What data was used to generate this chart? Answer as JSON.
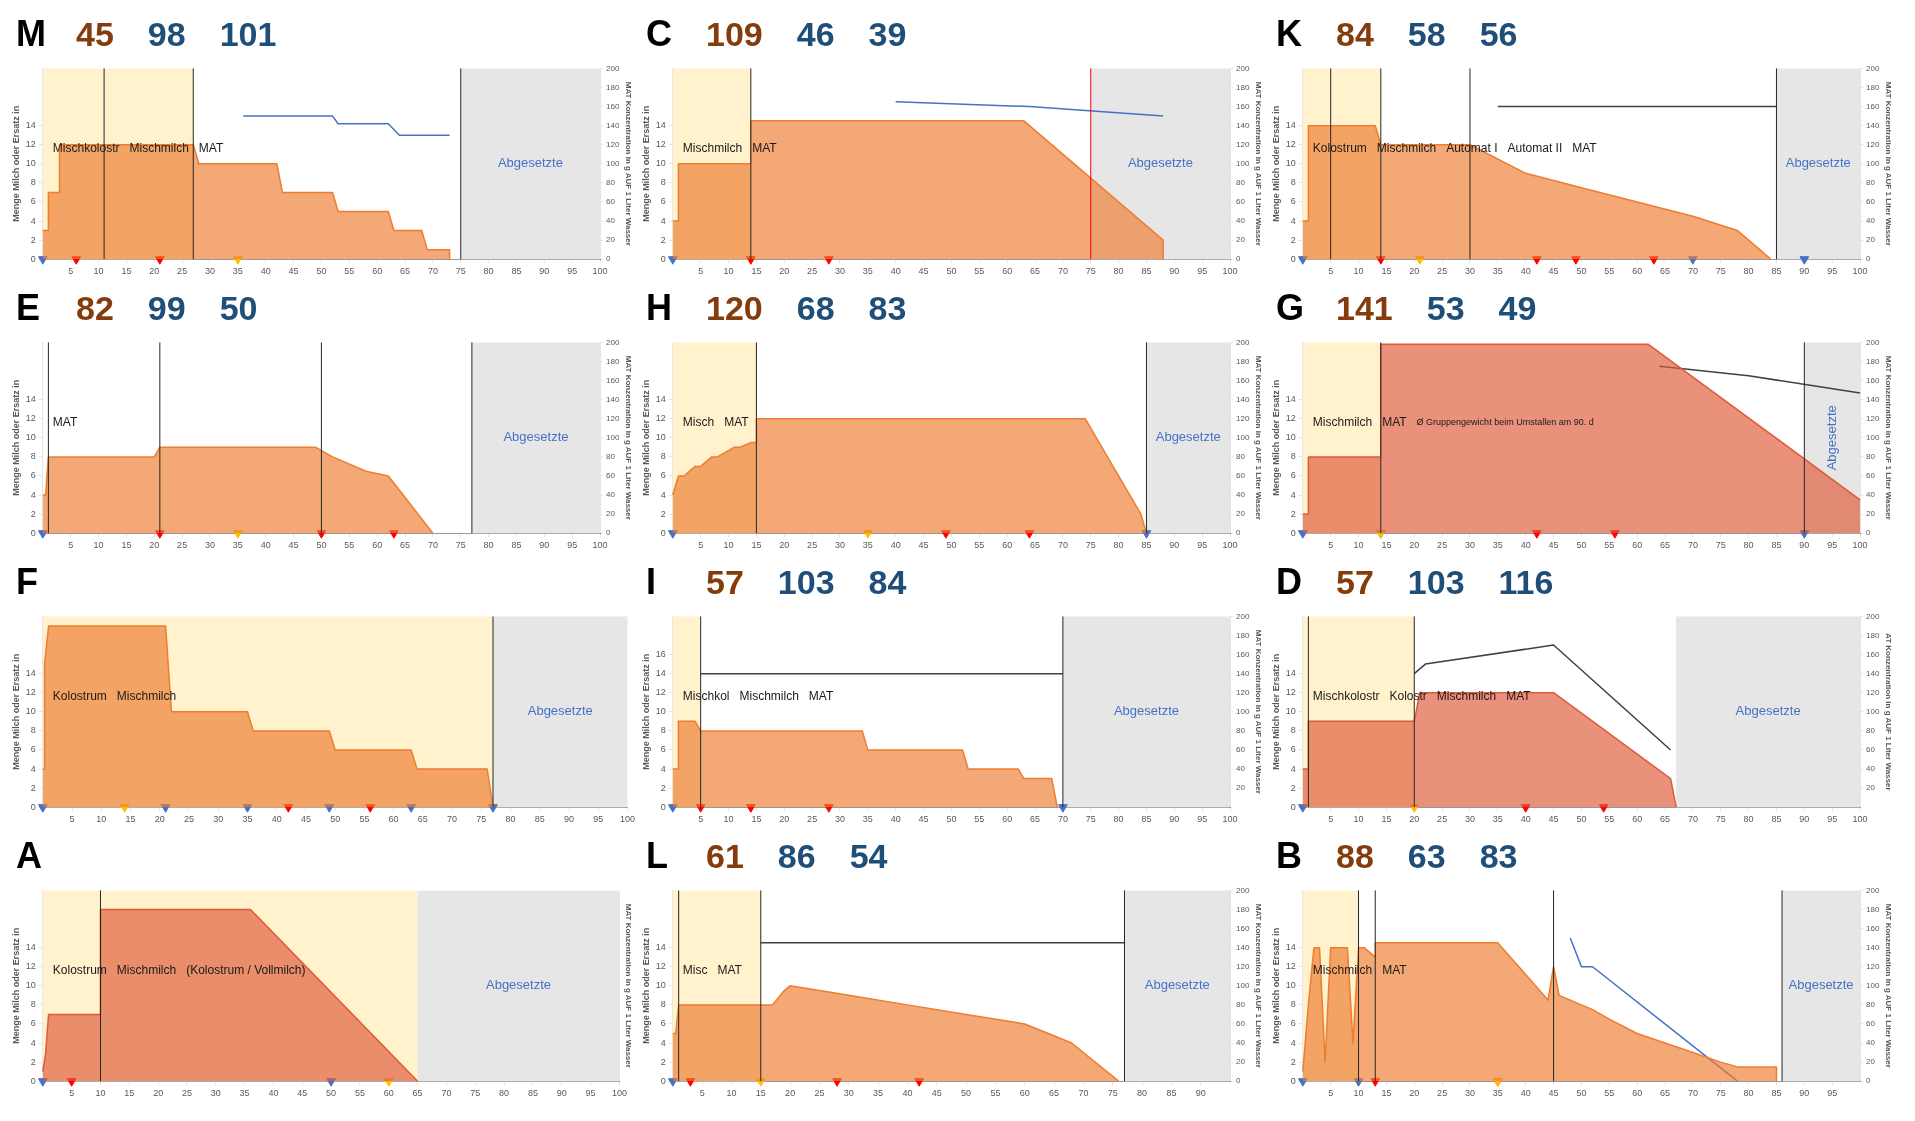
{
  "chart_data": [
    {
      "type": "area",
      "title": "M",
      "ylabel": "Menge Milch oder Ersatz in",
      "y2label": "MAT Konzentration in g AUF 1 Liter Wasser",
      "xlim": [
        0,
        100
      ],
      "xticks": [
        5,
        10,
        15,
        20,
        25,
        30,
        35,
        40,
        45,
        50,
        55,
        60,
        65,
        70,
        75,
        80,
        85,
        90,
        95,
        100
      ],
      "ylim": [
        0,
        20
      ],
      "yticks": [
        0,
        2,
        4,
        6,
        8,
        10,
        12,
        14
      ],
      "y2lim": [
        0,
        200
      ],
      "y2ticks": [
        0,
        20,
        40,
        60,
        80,
        100,
        120,
        140,
        160,
        180,
        200
      ],
      "series": [
        {
          "type": "area",
          "color": "#ed7d31",
          "x": [
            0,
            1,
            1,
            3,
            3,
            27,
            28,
            42,
            43,
            52,
            53,
            62,
            63,
            68,
            69,
            73,
            73
          ],
          "values": [
            3,
            3,
            7,
            7,
            12,
            12,
            10,
            10,
            7,
            7,
            5,
            5,
            3,
            3,
            1,
            1,
            0
          ]
        },
        {
          "type": "line",
          "axis": "y2",
          "color": "#4472c4",
          "x": [
            36,
            52,
            53,
            62,
            64,
            73
          ],
          "values": [
            150,
            150,
            142,
            142,
            130,
            130
          ]
        },
        {
          "type": "scatter",
          "marker": "triangle",
          "x": [
            0,
            6,
            21,
            35
          ],
          "values": [
            0,
            0,
            0,
            0
          ],
          "colors": [
            "#4472c4",
            "#ff0000",
            "#ff0000",
            "#ffc000"
          ]
        }
      ],
      "bands": [
        {
          "axis": "x",
          "from": 0,
          "to": 27,
          "color": "#fff2cc"
        },
        {
          "axis": "x",
          "from": 75,
          "to": 100,
          "color": "#e7e6e6",
          "label": "Abgesetzte"
        }
      ],
      "ref_lines": [
        {
          "axis": "x",
          "value": 11
        },
        {
          "axis": "x",
          "value": 27
        },
        {
          "axis": "x",
          "value": 75
        }
      ],
      "annotations": [
        "45",
        "98",
        "101",
        "Mischkolostr",
        "Mischmilch",
        "MAT"
      ]
    },
    {
      "type": "area",
      "title": "C",
      "ylabel": "Menge Milch oder Ersatz in",
      "y2label": "MAT Konzentration in g AUF 1 Liter Wasser",
      "xlim": [
        0,
        100
      ],
      "xticks": [
        5,
        10,
        15,
        20,
        25,
        30,
        35,
        40,
        45,
        50,
        55,
        60,
        65,
        70,
        75,
        80,
        85,
        90,
        95,
        100
      ],
      "ylim": [
        0,
        20
      ],
      "yticks": [
        0,
        2,
        4,
        6,
        8,
        10,
        12,
        14
      ],
      "y2lim": [
        0,
        200
      ],
      "y2ticks": [
        0,
        20,
        40,
        60,
        80,
        100,
        120,
        140,
        160,
        180,
        200
      ],
      "series": [
        {
          "type": "area",
          "color": "#ed7d31",
          "x": [
            0,
            1,
            1,
            14,
            14,
            63,
            88,
            88
          ],
          "values": [
            4,
            4,
            10,
            10,
            14.5,
            14.5,
            2,
            0
          ]
        },
        {
          "type": "line",
          "axis": "y2",
          "color": "#4472c4",
          "x": [
            40,
            64,
            88
          ],
          "values": [
            165,
            160,
            150
          ]
        },
        {
          "type": "scatter",
          "marker": "triangle",
          "x": [
            0,
            14,
            14,
            28
          ],
          "values": [
            0,
            0,
            0,
            0
          ],
          "colors": [
            "#4472c4",
            "#ffc000",
            "#ff0000",
            "#ff0000"
          ]
        }
      ],
      "bands": [
        {
          "axis": "x",
          "from": 0,
          "to": 14,
          "color": "#fff2cc"
        },
        {
          "axis": "x",
          "from": 75,
          "to": 100,
          "color": "#e7e6e6",
          "label": "Abgesetzte"
        }
      ],
      "ref_lines": [
        {
          "axis": "x",
          "value": 14
        },
        {
          "axis": "x",
          "value": 75,
          "color": "#ff0000"
        }
      ],
      "annotations": [
        "109",
        "46",
        "39",
        "Mischmilch",
        "MAT"
      ]
    },
    {
      "type": "area",
      "title": "K",
      "ylabel": "Menge Milch oder Ersatz in",
      "y2label": "MAT Konzentration in g AUF 1 Liter Wasser",
      "xlim": [
        0,
        100
      ],
      "xticks": [
        5,
        10,
        15,
        20,
        25,
        30,
        35,
        40,
        45,
        50,
        55,
        60,
        65,
        70,
        75,
        80,
        85,
        90,
        95,
        100
      ],
      "ylim": [
        0,
        20
      ],
      "yticks": [
        0,
        2,
        4,
        6,
        8,
        10,
        12,
        14
      ],
      "y2lim": [
        0,
        200
      ],
      "y2ticks": [
        0,
        20,
        40,
        60,
        80,
        100,
        120,
        140,
        160,
        180,
        200
      ],
      "series": [
        {
          "type": "area",
          "color": "#ed7d31",
          "x": [
            0,
            1,
            1,
            13,
            14,
            30,
            40,
            50,
            60,
            70,
            78,
            82,
            84
          ],
          "values": [
            4,
            4,
            14,
            14,
            12,
            12,
            9,
            7.5,
            6,
            4.5,
            3,
            1,
            0
          ]
        },
        {
          "type": "line",
          "axis": "y2",
          "color": "#404040",
          "x": [
            35,
            85
          ],
          "values": [
            160,
            160
          ]
        },
        {
          "type": "scatter",
          "marker": "triangle",
          "x": [
            0,
            14,
            21,
            42,
            49,
            63,
            70,
            90
          ],
          "values": [
            0,
            0,
            0,
            0,
            0,
            0,
            0,
            0
          ],
          "colors": [
            "#4472c4",
            "#ff0000",
            "#ffc000",
            "#ff0000",
            "#ff0000",
            "#ff0000",
            "#4472c4",
            "#4472c4"
          ]
        }
      ],
      "bands": [
        {
          "axis": "x",
          "from": 0,
          "to": 14,
          "color": "#fff2cc"
        },
        {
          "axis": "x",
          "from": 85,
          "to": 100,
          "color": "#e7e6e6",
          "label": "Abgesetzte"
        }
      ],
      "ref_lines": [
        {
          "axis": "x",
          "value": 5
        },
        {
          "axis": "x",
          "value": 14
        },
        {
          "axis": "x",
          "value": 30
        },
        {
          "axis": "x",
          "value": 85
        }
      ],
      "annotations": [
        "84",
        "58",
        "56",
        "Kolostrum",
        "Mischmilch",
        "Automat I",
        "Automat II",
        "MAT"
      ]
    },
    {
      "type": "area",
      "title": "E",
      "ylabel": "Menge Milch oder Ersatz in",
      "y2label": "MAT Konzentration in g AUF 1 Liter Wasser",
      "xlim": [
        0,
        100
      ],
      "xticks": [
        5,
        10,
        15,
        20,
        25,
        30,
        35,
        40,
        45,
        50,
        55,
        60,
        65,
        70,
        75,
        80,
        85,
        90,
        95,
        100
      ],
      "ylim": [
        0,
        20
      ],
      "yticks": [
        0,
        2,
        4,
        6,
        8,
        10,
        12,
        14
      ],
      "y2lim": [
        0,
        200
      ],
      "y2ticks": [
        0,
        20,
        40,
        60,
        80,
        100,
        120,
        140,
        160,
        180,
        200
      ],
      "series": [
        {
          "type": "area",
          "color": "#ed7d31",
          "x": [
            0,
            0.5,
            1,
            20,
            21,
            49,
            52,
            58,
            62,
            66,
            70
          ],
          "values": [
            4,
            4,
            8,
            8,
            9,
            9,
            8,
            6.5,
            6,
            3,
            0
          ]
        },
        {
          "type": "scatter",
          "marker": "triangle",
          "x": [
            0,
            21,
            35,
            50,
            63
          ],
          "values": [
            0,
            0,
            0,
            0,
            0
          ],
          "colors": [
            "#4472c4",
            "#ff0000",
            "#ffc000",
            "#ff0000",
            "#ff0000"
          ]
        }
      ],
      "bands": [
        {
          "axis": "x",
          "from": 77,
          "to": 100,
          "color": "#e7e6e6",
          "label": "Abgesetzte"
        }
      ],
      "ref_lines": [
        {
          "axis": "x",
          "value": 1
        },
        {
          "axis": "x",
          "value": 21
        },
        {
          "axis": "x",
          "value": 50
        },
        {
          "axis": "x",
          "value": 77
        }
      ],
      "annotations": [
        "82",
        "99",
        "50",
        "MAT"
      ]
    },
    {
      "type": "area",
      "title": "H",
      "ylabel": "Menge Milch oder Ersatz in",
      "y2label": "MAT Konzentration in g AUF 1 Liter Wasser",
      "xlim": [
        0,
        100
      ],
      "xticks": [
        5,
        10,
        15,
        20,
        25,
        30,
        35,
        40,
        45,
        50,
        55,
        60,
        65,
        70,
        75,
        80,
        85,
        90,
        95,
        100
      ],
      "ylim": [
        0,
        20
      ],
      "yticks": [
        0,
        2,
        4,
        6,
        8,
        10,
        12,
        14
      ],
      "y2lim": [
        0,
        200
      ],
      "y2ticks": [
        0,
        20,
        40,
        60,
        80,
        100,
        120,
        140,
        160,
        180,
        200
      ],
      "series": [
        {
          "type": "area",
          "color": "#ed7d31",
          "x": [
            0,
            1,
            2,
            4,
            5,
            7,
            8,
            11,
            12,
            14,
            15,
            15,
            74,
            84,
            85
          ],
          "values": [
            4,
            6,
            6,
            7,
            7,
            8,
            8,
            9,
            9,
            9.5,
            9.5,
            12,
            12,
            2,
            0
          ]
        },
        {
          "type": "scatter",
          "marker": "triangle",
          "x": [
            0,
            35,
            49,
            64,
            85
          ],
          "values": [
            0,
            0,
            0,
            0,
            0
          ],
          "colors": [
            "#4472c4",
            "#ffc000",
            "#ff0000",
            "#ff0000",
            "#4472c4"
          ]
        }
      ],
      "bands": [
        {
          "axis": "x",
          "from": 0,
          "to": 15,
          "color": "#fff2cc"
        },
        {
          "axis": "x",
          "from": 85,
          "to": 100,
          "color": "#e7e6e6",
          "label": "Abgesetzte"
        }
      ],
      "ref_lines": [
        {
          "axis": "x",
          "value": 15
        },
        {
          "axis": "x",
          "value": 85
        }
      ],
      "annotations": [
        "120",
        "68",
        "83",
        "Misch",
        "MAT"
      ]
    },
    {
      "type": "area",
      "title": "G",
      "ylabel": "Menge Milch oder Ersatz in",
      "y2label": "MAT Konzentration in g AUF 1 Liter Wasser",
      "xlim": [
        0,
        100
      ],
      "xticks": [
        5,
        10,
        15,
        20,
        25,
        30,
        35,
        40,
        45,
        50,
        55,
        60,
        65,
        70,
        75,
        80,
        85,
        90,
        95,
        100
      ],
      "ylim": [
        0,
        20
      ],
      "yticks": [
        0,
        2,
        4,
        6,
        8,
        10,
        12,
        14
      ],
      "y2lim": [
        0,
        200
      ],
      "y2ticks": [
        0,
        20,
        40,
        60,
        80,
        100,
        120,
        140,
        160,
        180,
        200
      ],
      "series": [
        {
          "type": "area",
          "color": "#e05a3a",
          "x": [
            0,
            1,
            1,
            14,
            14,
            62,
            100
          ],
          "values": [
            2,
            2,
            8,
            8,
            19.8,
            19.8,
            3.5
          ]
        },
        {
          "type": "line",
          "axis": "y2",
          "color": "#404040",
          "x": [
            64,
            80,
            100
          ],
          "values": [
            175,
            165,
            147
          ]
        },
        {
          "type": "scatter",
          "marker": "triangle",
          "x": [
            0,
            14,
            14,
            42,
            56,
            90
          ],
          "values": [
            0,
            0,
            0,
            0,
            0,
            0
          ],
          "colors": [
            "#4472c4",
            "#4472c4",
            "#ffc000",
            "#ff0000",
            "#ff0000",
            "#4472c4"
          ]
        }
      ],
      "bands": [
        {
          "axis": "x",
          "from": 0,
          "to": 14,
          "color": "#fff2cc"
        },
        {
          "axis": "x",
          "from": 90,
          "to": 100,
          "color": "#e7e6e6",
          "label": "Abgesetzte"
        }
      ],
      "ref_lines": [
        {
          "axis": "x",
          "value": 14
        },
        {
          "axis": "x",
          "value": 90
        }
      ],
      "annotations": [
        "141",
        "53",
        "49",
        "Mischmilch",
        "MAT",
        "Ø Gruppengewicht beim Umstallen am 90. d"
      ]
    },
    {
      "type": "area",
      "title": "F",
      "ylabel": "Menge Milch oder Ersatz in",
      "xlim": [
        0,
        100
      ],
      "xticks": [
        5,
        10,
        15,
        20,
        25,
        30,
        35,
        40,
        45,
        50,
        55,
        60,
        65,
        70,
        75,
        80,
        85,
        90,
        95,
        100
      ],
      "ylim": [
        0,
        20
      ],
      "yticks": [
        0,
        2,
        4,
        6,
        8,
        10,
        12,
        14
      ],
      "series": [
        {
          "type": "area",
          "color": "#ed7d31",
          "x": [
            0,
            0.3,
            0.3,
            1,
            21,
            22,
            35,
            36,
            49,
            50,
            63,
            64,
            76,
            77
          ],
          "values": [
            4,
            4,
            15,
            19,
            19,
            10,
            10,
            8,
            8,
            6,
            6,
            4,
            4,
            0
          ]
        },
        {
          "type": "scatter",
          "marker": "triangle",
          "x": [
            0,
            14,
            21,
            35,
            42,
            49,
            56,
            63,
            77
          ],
          "values": [
            0,
            0,
            0,
            0,
            0,
            0,
            0,
            0,
            0
          ],
          "colors": [
            "#4472c4",
            "#ffc000",
            "#4472c4",
            "#4472c4",
            "#ff0000",
            "#4472c4",
            "#ff0000",
            "#4472c4",
            "#4472c4"
          ]
        }
      ],
      "bands": [
        {
          "axis": "x",
          "from": 0,
          "to": 77,
          "color": "#fff2cc"
        },
        {
          "axis": "x",
          "from": 77,
          "to": 100,
          "color": "#e7e6e6",
          "label": "Abgesetzte"
        }
      ],
      "ref_lines": [
        {
          "axis": "x",
          "value": 77
        }
      ],
      "annotations": [
        "Kolostrum",
        "Mischmilch"
      ]
    },
    {
      "type": "area",
      "title": "I",
      "ylabel": "Menge Milch oder Ersatz in",
      "y2label": "MAT Konzentration in g AUF 1 Liter Wasser",
      "xlim": [
        0,
        100
      ],
      "xticks": [
        5,
        10,
        15,
        20,
        25,
        30,
        35,
        40,
        45,
        50,
        55,
        60,
        65,
        70,
        75,
        80,
        85,
        90,
        95,
        100
      ],
      "ylim": [
        0,
        20
      ],
      "yticks": [
        0,
        2,
        4,
        6,
        8,
        10,
        12,
        14,
        16
      ],
      "y2lim": [
        0,
        200
      ],
      "y2ticks": [
        20,
        40,
        60,
        80,
        100,
        120,
        140,
        160,
        180,
        200
      ],
      "series": [
        {
          "type": "area",
          "color": "#ed7d31",
          "x": [
            0,
            1,
            1,
            4,
            5,
            34,
            35,
            52,
            53,
            62,
            63,
            68,
            69
          ],
          "values": [
            4,
            4,
            9,
            9,
            8,
            8,
            6,
            6,
            4,
            4,
            3,
            3,
            0
          ]
        },
        {
          "type": "line",
          "axis": "y2",
          "color": "#404040",
          "x": [
            5,
            70
          ],
          "values": [
            140,
            140
          ]
        },
        {
          "type": "scatter",
          "marker": "triangle",
          "x": [
            0,
            5,
            14,
            14,
            28,
            70
          ],
          "values": [
            0,
            0,
            0,
            0,
            0,
            0
          ],
          "colors": [
            "#4472c4",
            "#ff0000",
            "#ffc000",
            "#ff0000",
            "#ff0000",
            "#4472c4"
          ]
        }
      ],
      "bands": [
        {
          "axis": "x",
          "from": 0,
          "to": 5,
          "color": "#fff2cc"
        },
        {
          "axis": "x",
          "from": 70,
          "to": 100,
          "color": "#e7e6e6",
          "label": "Abgesetzte"
        }
      ],
      "ref_lines": [
        {
          "axis": "x",
          "value": 5
        },
        {
          "axis": "x",
          "value": 70
        }
      ],
      "annotations": [
        "57",
        "103",
        "84",
        "Mischkol",
        "Mischmilch",
        "MAT"
      ]
    },
    {
      "type": "area",
      "title": "D",
      "ylabel": "Menge Milch oder Ersatz in",
      "y2label": "AT Konzentration in g AUF 1 Liter Wasser",
      "xlim": [
        0,
        100
      ],
      "xticks": [
        5,
        10,
        15,
        20,
        25,
        30,
        35,
        40,
        45,
        50,
        55,
        60,
        65,
        70,
        75,
        80,
        85,
        90,
        95,
        100
      ],
      "ylim": [
        0,
        20
      ],
      "yticks": [
        0,
        2,
        4,
        6,
        8,
        10,
        12,
        14
      ],
      "y2lim": [
        0,
        200
      ],
      "y2ticks": [
        20,
        40,
        60,
        80,
        100,
        120,
        140,
        160,
        180,
        200
      ],
      "series": [
        {
          "type": "area",
          "color": "#e05a3a",
          "x": [
            0,
            1,
            1,
            20,
            21,
            45,
            66,
            67
          ],
          "values": [
            4,
            4,
            9,
            9,
            12,
            12,
            3,
            0
          ]
        },
        {
          "type": "line",
          "axis": "y2",
          "color": "#404040",
          "x": [
            20,
            22,
            45,
            66
          ],
          "values": [
            140,
            150,
            170,
            60
          ]
        },
        {
          "type": "scatter",
          "marker": "triangle",
          "x": [
            0,
            20,
            40,
            54
          ],
          "values": [
            0,
            0,
            0,
            0
          ],
          "colors": [
            "#4472c4",
            "#ffc000",
            "#ff0000",
            "#ff0000"
          ]
        }
      ],
      "bands": [
        {
          "axis": "x",
          "from": 0,
          "to": 20,
          "color": "#fff2cc"
        },
        {
          "axis": "x",
          "from": 67,
          "to": 100,
          "color": "#e7e6e6",
          "label": "Abgesetzte"
        }
      ],
      "ref_lines": [
        {
          "axis": "x",
          "value": 1
        },
        {
          "axis": "x",
          "value": 20
        }
      ],
      "annotations": [
        "57",
        "103",
        "116",
        "Mischkolostr",
        "Kolostr",
        "Mischmilch",
        "MAT"
      ]
    },
    {
      "type": "area",
      "title": "A",
      "ylabel": "Menge Milch oder Ersatz in",
      "y2label": "MAT Konzentration in g AUF 1 Liter Wasser",
      "xlim": [
        0,
        100
      ],
      "xticks": [
        5,
        10,
        15,
        20,
        25,
        30,
        35,
        40,
        45,
        50,
        55,
        60,
        65,
        70,
        75,
        80,
        85,
        90,
        95,
        100
      ],
      "ylim": [
        0,
        20
      ],
      "yticks": [
        0,
        2,
        4,
        6,
        8,
        10,
        12,
        14
      ],
      "series": [
        {
          "type": "area",
          "color": "#e05a3a",
          "x": [
            0,
            0.5,
            1,
            10,
            10,
            36,
            65
          ],
          "values": [
            1,
            3,
            7,
            7,
            18,
            18,
            0
          ]
        },
        {
          "type": "scatter",
          "marker": "triangle",
          "x": [
            0,
            5,
            50,
            60
          ],
          "values": [
            0,
            0,
            0,
            0
          ],
          "colors": [
            "#4472c4",
            "#ff0000",
            "#4472c4",
            "#ffc000"
          ]
        }
      ],
      "bands": [
        {
          "axis": "x",
          "from": 0,
          "to": 65,
          "color": "#fff2cc"
        },
        {
          "axis": "x",
          "from": 65,
          "to": 100,
          "color": "#e7e6e6",
          "label": "Abgesetzte"
        }
      ],
      "ref_lines": [
        {
          "axis": "x",
          "value": 10
        }
      ],
      "annotations": [
        "Kolostrum",
        "Mischmilch",
        "(Kolostrum / Vollmilch)"
      ]
    },
    {
      "type": "area",
      "title": "L",
      "ylabel": "Menge Milch oder Ersatz in",
      "y2label": "MAT Konzentration in g AUF 1 Liter Wasser",
      "xlim": [
        0,
        95
      ],
      "xticks": [
        5,
        10,
        15,
        20,
        25,
        30,
        35,
        40,
        45,
        50,
        55,
        60,
        65,
        70,
        75,
        80,
        85,
        90
      ],
      "ylim": [
        0,
        20
      ],
      "yticks": [
        0,
        2,
        4,
        6,
        8,
        10,
        12,
        14
      ],
      "y2lim": [
        0,
        200
      ],
      "y2ticks": [
        0,
        20,
        40,
        60,
        80,
        100,
        120,
        140,
        160,
        180,
        200
      ],
      "series": [
        {
          "type": "area",
          "color": "#ed7d31",
          "x": [
            0,
            0.5,
            1,
            17,
            19,
            20,
            30,
            40,
            50,
            60,
            68,
            72,
            76
          ],
          "values": [
            5,
            5,
            8,
            8,
            9.5,
            10,
            9,
            8,
            7,
            6,
            4,
            2,
            0
          ]
        },
        {
          "type": "line",
          "axis": "y2",
          "color": "#404040",
          "x": [
            15,
            77
          ],
          "values": [
            145,
            145
          ]
        },
        {
          "type": "scatter",
          "marker": "triangle",
          "x": [
            0,
            3,
            15,
            28,
            42
          ],
          "values": [
            0,
            0,
            0,
            0,
            0
          ],
          "colors": [
            "#4472c4",
            "#ff0000",
            "#ffc000",
            "#ff0000",
            "#ff0000"
          ]
        }
      ],
      "bands": [
        {
          "axis": "x",
          "from": 0,
          "to": 15,
          "color": "#fff2cc"
        },
        {
          "axis": "x",
          "from": 77,
          "to": 95,
          "color": "#e7e6e6",
          "label": "Abgesetzte"
        }
      ],
      "ref_lines": [
        {
          "axis": "x",
          "value": 1
        },
        {
          "axis": "x",
          "value": 15
        },
        {
          "axis": "x",
          "value": 77
        }
      ],
      "annotations": [
        "61",
        "86",
        "54",
        "Misc",
        "MAT"
      ]
    },
    {
      "type": "area",
      "title": "B",
      "ylabel": "Menge Milch oder Ersatz in",
      "y2label": "MAT Konzentration in g AUF 1 Liter Wasser",
      "xlim": [
        0,
        100
      ],
      "xticks": [
        5,
        10,
        15,
        20,
        25,
        30,
        35,
        40,
        45,
        50,
        55,
        60,
        65,
        70,
        75,
        80,
        85,
        90,
        95
      ],
      "ylim": [
        0,
        20
      ],
      "yticks": [
        0,
        2,
        4,
        6,
        8,
        10,
        12,
        14
      ],
      "y2lim": [
        0,
        200
      ],
      "y2ticks": [
        0,
        20,
        40,
        60,
        80,
        100,
        120,
        140,
        160,
        180,
        200
      ],
      "series": [
        {
          "type": "area",
          "color": "#ed7d31",
          "x": [
            0,
            1,
            2,
            3,
            4,
            5,
            8,
            9,
            10,
            11,
            13,
            13,
            35,
            44,
            45,
            46,
            50,
            52,
            55,
            60,
            65,
            70,
            75,
            78,
            85,
            85
          ],
          "values": [
            1,
            8,
            14,
            14,
            2,
            14,
            14,
            4,
            14,
            14,
            13,
            14.5,
            14.5,
            8.5,
            12,
            9,
            8,
            7.5,
            6.5,
            5,
            4,
            3,
            2,
            1.5,
            1.5,
            0
          ]
        },
        {
          "type": "line",
          "axis": "y2",
          "color": "#4472c4",
          "x": [
            48,
            50,
            52,
            78
          ],
          "values": [
            150,
            120,
            120,
            0
          ]
        },
        {
          "type": "scatter",
          "marker": "triangle",
          "x": [
            0,
            10,
            13,
            35,
            35
          ],
          "values": [
            0,
            0,
            0,
            0,
            0
          ],
          "colors": [
            "#4472c4",
            "#4472c4",
            "#ff0000",
            "#ff0000",
            "#ffc000"
          ]
        }
      ],
      "bands": [
        {
          "axis": "x",
          "from": 0,
          "to": 10,
          "color": "#fff2cc"
        },
        {
          "axis": "x",
          "from": 86,
          "to": 100,
          "color": "#e7e6e6",
          "label": "Abgesetzte"
        }
      ],
      "ref_lines": [
        {
          "axis": "x",
          "value": 10
        },
        {
          "axis": "x",
          "value": 13
        },
        {
          "axis": "x",
          "value": 45
        },
        {
          "axis": "x",
          "value": 86
        }
      ],
      "annotations": [
        "88",
        "63",
        "83",
        "Mischmilch",
        "MAT"
      ]
    }
  ]
}
